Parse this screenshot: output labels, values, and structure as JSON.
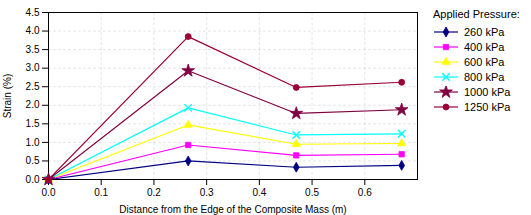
{
  "chart_data": {
    "type": "line",
    "title": "Applied Pressure:",
    "xlabel": "Distance from the Edge of the Composite Mass (m)",
    "ylabel": "Strain (%)",
    "xlim": [
      0.0,
      0.7
    ],
    "ylim": [
      0.0,
      4.5
    ],
    "xticks": [
      {
        "value": 0,
        "label": "0.0"
      },
      0.1,
      0.2,
      0.3,
      0.4,
      0.5,
      0.6
    ],
    "yticks": [
      {
        "value": 0,
        "label": "0.0"
      },
      0.5,
      {
        "value": 1,
        "label": "1.0"
      },
      1.5,
      {
        "value": 2,
        "label": "2.0"
      },
      2.5,
      {
        "value": 3,
        "label": "3.0"
      },
      3.5,
      {
        "value": 4,
        "label": "4.0"
      },
      4.5
    ],
    "grid": true,
    "legend": "right",
    "x": [
      0.0,
      0.265,
      0.47,
      0.67
    ],
    "series": [
      {
        "name": "260 kPa",
        "color": "#000080",
        "marker": "diamond",
        "values": [
          0.0,
          0.5,
          0.33,
          0.38
        ]
      },
      {
        "name": "400 kPa",
        "color": "#FF00FF",
        "marker": "square",
        "values": [
          0.0,
          0.93,
          0.65,
          0.68
        ]
      },
      {
        "name": "600 kPa",
        "color": "#FFFF00",
        "marker": "triangle",
        "values": [
          0.0,
          1.47,
          0.95,
          0.97
        ]
      },
      {
        "name": "800 kPa",
        "color": "#00FFFF",
        "marker": "x",
        "values": [
          0.0,
          1.93,
          1.2,
          1.23
        ]
      },
      {
        "name": "1000 kPa",
        "color": "#800040",
        "marker": "star",
        "values": [
          0.0,
          2.93,
          1.78,
          1.88
        ]
      },
      {
        "name": "1250 kPa",
        "color": "#990033",
        "marker": "circle",
        "values": [
          0.0,
          3.85,
          2.48,
          2.62
        ]
      }
    ]
  }
}
